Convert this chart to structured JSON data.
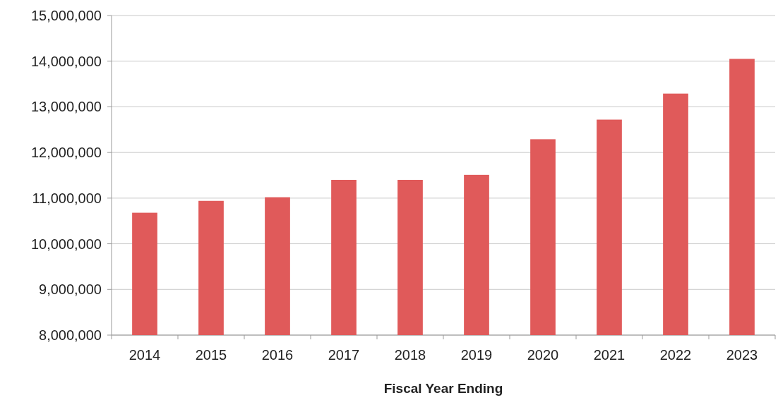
{
  "chart_data": {
    "type": "bar",
    "xlabel": "Fiscal Year Ending",
    "categories": [
      "2014",
      "2015",
      "2016",
      "2017",
      "2018",
      "2019",
      "2020",
      "2021",
      "2022",
      "2023"
    ],
    "values": [
      10680000,
      10940000,
      11020000,
      11400000,
      11400000,
      11510000,
      12290000,
      12720000,
      13290000,
      14050000
    ],
    "color": "#e05a5a",
    "ylim": [
      8000000,
      15000000
    ],
    "yticks": [
      {
        "value": 8000000,
        "label": "8,000,000"
      },
      {
        "value": 9000000,
        "label": "9,000,000"
      },
      {
        "value": 10000000,
        "label": "10,000,000"
      },
      {
        "value": 11000000,
        "label": "11,000,000"
      },
      {
        "value": 12000000,
        "label": "12,000,000"
      },
      {
        "value": 13000000,
        "label": "13,000,000"
      },
      {
        "value": 14000000,
        "label": "14,000,000"
      },
      {
        "value": 15000000,
        "label": "15,000,000"
      }
    ],
    "grid": "y"
  }
}
